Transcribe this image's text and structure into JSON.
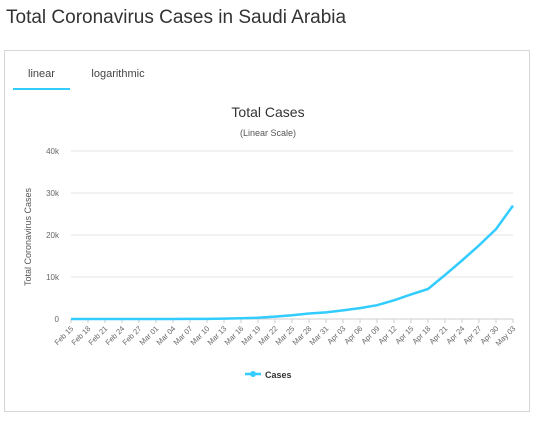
{
  "page": {
    "title": "Total Coronavirus Cases in Saudi Arabia"
  },
  "tabs": [
    {
      "label": "linear",
      "active": true
    },
    {
      "label": "logarithmic",
      "active": false
    }
  ],
  "chart_data": {
    "type": "line",
    "title": "Total Cases",
    "subtitle": "(Linear Scale)",
    "ylabel": "Total Coronavirus Cases",
    "xlabel": "",
    "ylim": [
      0,
      40000
    ],
    "yticks": [
      0,
      10000,
      20000,
      30000,
      40000
    ],
    "ytick_labels": [
      "0",
      "10k",
      "20k",
      "30k",
      "40k"
    ],
    "grid": true,
    "legend_position": "bottom-center",
    "color": "#33ccff",
    "x": [
      "Feb 15",
      "Feb 18",
      "Feb 21",
      "Feb 24",
      "Feb 27",
      "Mar 01",
      "Mar 04",
      "Mar 07",
      "Mar 10",
      "Mar 13",
      "Mar 16",
      "Mar 19",
      "Mar 22",
      "Mar 25",
      "Mar 28",
      "Mar 31",
      "Apr 03",
      "Apr 06",
      "Apr 09",
      "Apr 12",
      "Apr 15",
      "Apr 18",
      "Apr 21",
      "Apr 24",
      "Apr 27",
      "Apr 30",
      "May 03"
    ],
    "series": [
      {
        "name": "Cases",
        "values": [
          0,
          0,
          0,
          0,
          0,
          0,
          5,
          20,
          21,
          86,
          171,
          274,
          562,
          900,
          1299,
          1563,
          2039,
          2605,
          3287,
          4462,
          5862,
          7142,
          10484,
          13930,
          17522,
          21402,
          27011
        ]
      }
    ]
  }
}
